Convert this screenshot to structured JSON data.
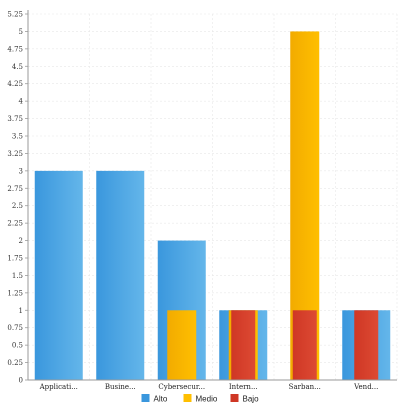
{
  "colors": {
    "alto": "#3a97dd",
    "alto_light": "#64b6ea",
    "medio": "#ffbf00",
    "medio_dark": "#f2ab00",
    "bajo": "#cf3725",
    "bajo_light": "#dd4a33",
    "grid": "#e8e8e8",
    "axis": "#9a9a9a"
  },
  "chart_data": {
    "type": "bar",
    "categories": [
      "Applicati...",
      "Busine...",
      "Cybersecur...",
      "Intern...",
      "Sarban...",
      "Vend..."
    ],
    "series": [
      {
        "name": "Alto",
        "values": [
          3,
          3,
          2,
          1,
          0,
          1
        ]
      },
      {
        "name": "Medio",
        "values": [
          0,
          0,
          1,
          1,
          5,
          0
        ]
      },
      {
        "name": "Bajo",
        "values": [
          0,
          0,
          0,
          1,
          1,
          1
        ]
      }
    ],
    "ylim": [
      0,
      5.25
    ],
    "ytick_step": 0.25,
    "ytick_labels": [
      "0",
      "0.25",
      "0.5",
      "0.75",
      "1",
      "1.25",
      "1.5",
      "1.75",
      "2",
      "2.25",
      "2.5",
      "2.75",
      "3",
      "3.25",
      "3.5",
      "3.75",
      "4",
      "4.25",
      "4.5",
      "4.75",
      "5",
      "5.25"
    ],
    "grid": true,
    "legend_position": "bottom-center",
    "overlapping_bars": true
  }
}
